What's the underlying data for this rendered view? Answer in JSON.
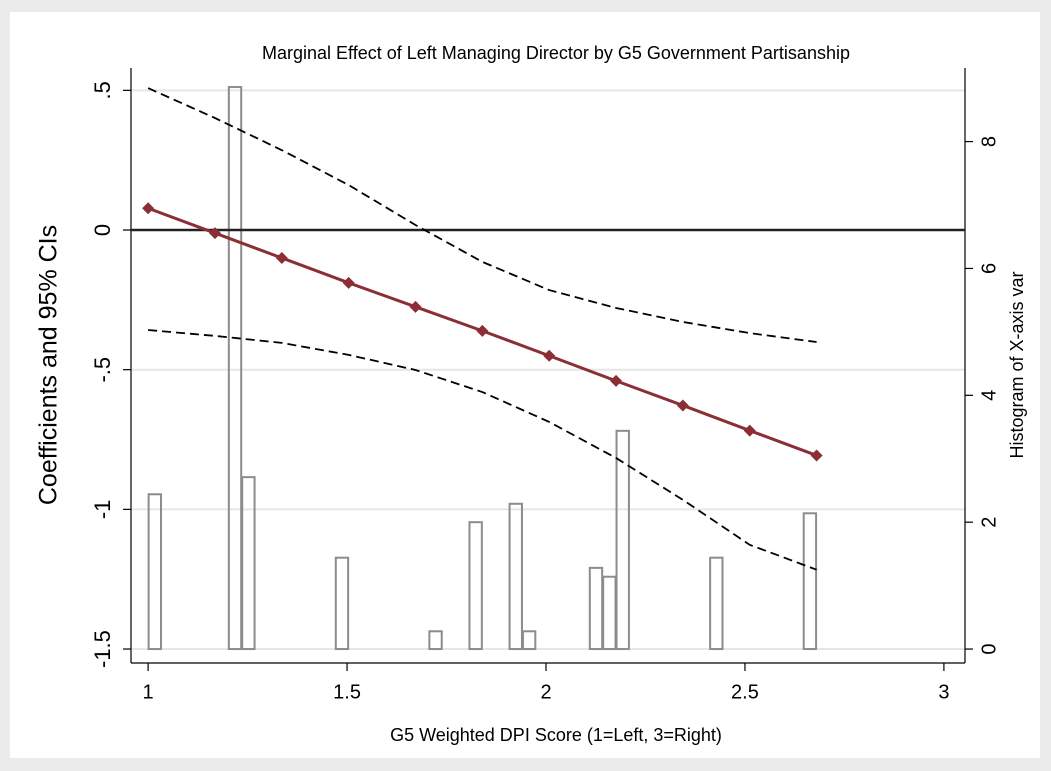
{
  "chart_data": {
    "type": "line",
    "title": "Marginal Effect of Left Managing Director by G5 Government Partisanship",
    "x_label": "G5 Weighted DPI Score (1=Left, 3=Right)",
    "y_label": "Coefficients and 95% CIs",
    "y2_label": "Histogram of X-axis var",
    "x": [
      1,
      1.168,
      1.336,
      1.504,
      1.672,
      1.84,
      2.008,
      2.176,
      2.344,
      2.512,
      2.68
    ],
    "series": [
      {
        "color": "#8b2e36",
        "marker": "diamond",
        "dashed": false,
        "values": [
          0.078,
          -0.011,
          -0.1,
          -0.189,
          -0.275,
          -0.361,
          -0.45,
          -0.54,
          -0.628,
          -0.718,
          -0.807
        ]
      },
      {
        "color": "#000000",
        "marker": "none",
        "dashed": true,
        "values": [
          0.508,
          0.401,
          0.286,
          0.161,
          0.018,
          -0.114,
          -0.215,
          -0.279,
          -0.329,
          -0.369,
          -0.401
        ]
      },
      {
        "color": "#000000",
        "marker": "none",
        "dashed": true,
        "values": [
          -0.358,
          -0.379,
          -0.404,
          -0.447,
          -0.501,
          -0.58,
          -0.687,
          -0.816,
          -0.966,
          -1.127,
          -1.216
        ]
      }
    ],
    "histogram": {
      "type": "histogram",
      "axis": "y2",
      "color": "#8c8c8c",
      "bins": [
        1,
        1.0336,
        1.0672,
        1.1008,
        1.1344,
        1.168,
        1.2016,
        1.2352,
        1.2688,
        1.3024,
        1.336,
        1.3696,
        1.4032,
        1.4368,
        1.4704,
        1.504,
        1.5376,
        1.5712,
        1.6048,
        1.6384,
        1.672,
        1.7056,
        1.7392,
        1.7728,
        1.8064,
        1.84,
        1.8736,
        1.9072,
        1.9408,
        1.9744,
        2.008,
        2.0416,
        2.0752,
        2.1088,
        2.1424,
        2.176,
        2.2096,
        2.2432,
        2.2768,
        2.3104,
        2.344,
        2.3776,
        2.4112,
        2.4448,
        2.4784,
        2.512,
        2.5456,
        2.5792,
        2.6128,
        2.6464,
        2.68
      ],
      "counts": [
        2.44,
        0,
        0,
        0,
        0,
        0,
        8.86,
        2.71,
        0,
        0,
        0,
        0,
        0,
        0,
        1.44,
        0,
        0,
        0,
        0,
        0,
        0,
        0.28,
        0,
        0,
        2.0,
        0,
        0,
        2.29,
        0.28,
        0,
        0,
        0,
        0,
        1.28,
        1.14,
        3.44,
        0,
        0,
        0,
        0,
        0,
        0,
        1.44,
        0,
        0,
        0,
        0,
        0,
        0,
        2.14
      ]
    },
    "hline": 0,
    "xlim": [
      0.957,
      3.053
    ],
    "xticks": [
      1,
      1.5,
      2,
      2.5,
      3
    ],
    "ylim": [
      -1.55,
      0.58
    ],
    "yticks": [
      {
        "value": 0.5,
        "label": ".5"
      },
      0,
      {
        "value": -0.5,
        "label": "-.5"
      },
      -1,
      -1.5
    ],
    "y2lim": [
      -0.22,
      9.16
    ],
    "y2ticks": [
      0,
      2,
      4,
      6,
      8
    ],
    "grid": true
  }
}
